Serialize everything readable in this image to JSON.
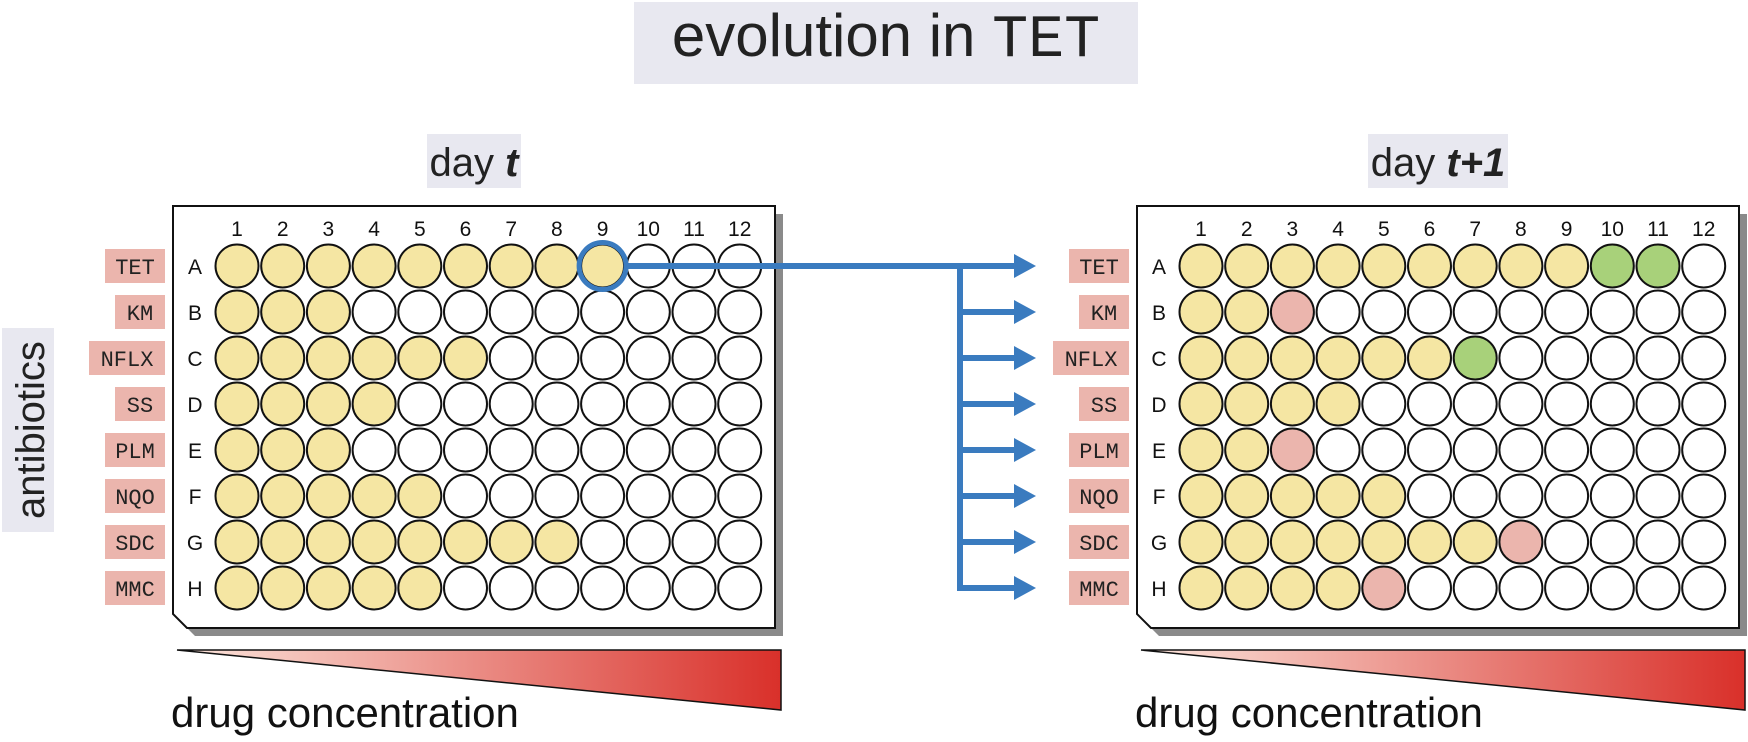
{
  "title": {
    "prefix": "evolution in ",
    "drug": "TET"
  },
  "axis_label": "antibiotics",
  "columns": [
    "1",
    "2",
    "3",
    "4",
    "5",
    "6",
    "7",
    "8",
    "9",
    "10",
    "11",
    "12"
  ],
  "rows": [
    "A",
    "B",
    "C",
    "D",
    "E",
    "F",
    "G",
    "H"
  ],
  "antibiotics": [
    "TET",
    "KM",
    "NFLX",
    "SS",
    "PLM",
    "NQO",
    "SDC",
    "MMC"
  ],
  "colors": {
    "growth": "#f5e6a3",
    "resistant": "#a8d17a",
    "sensitive": "#ebb5ad",
    "empty": "#ffffff",
    "label_bg": "#ebb5ad",
    "title_bg": "#e8e8f0",
    "arrow": "#3a7bbf",
    "gradient_start": "#fbe6dd",
    "gradient_end": "#d9302a"
  },
  "plates": [
    {
      "day_prefix": "day ",
      "day_value": "t",
      "gradient_label": "drug concentration",
      "selected_well": {
        "row": "A",
        "column": "9"
      },
      "wells": [
        "gggggggggeee",
        "gggeeeeeeeee",
        "ggggggeeeeee",
        "ggggeeeeeeee",
        "gggeeeeeeeee",
        "gggggeeeeeee",
        "ggggggggeeee",
        "gggggeeeeeee"
      ]
    },
    {
      "day_prefix": "day ",
      "day_value": "t+1",
      "gradient_label": "drug concentration",
      "wells": [
        "gggggggggrre",
        "ggseeeeeeeee",
        "ggggggreeeee",
        "ggggeeeeeeee",
        "ggseeeeeeeee",
        "gggggeeeeeee",
        "gggggggseeee",
        "ggggseeeeeee"
      ]
    }
  ]
}
